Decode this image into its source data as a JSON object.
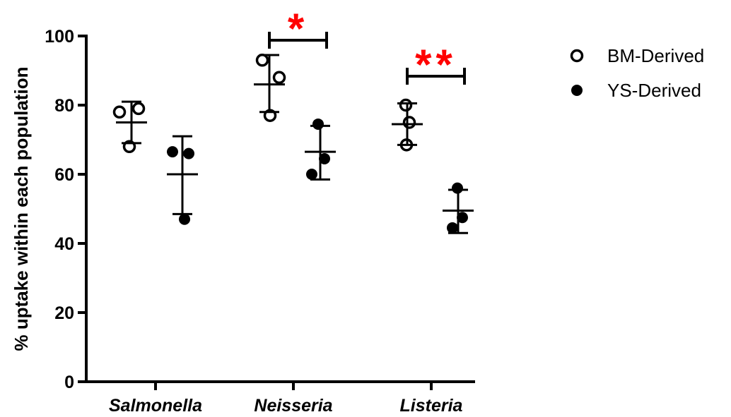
{
  "chart_data": {
    "type": "scatter",
    "title": "",
    "xlabel": "",
    "ylabel": "% uptake within each population",
    "ylim": [
      0,
      100
    ],
    "yticks": [
      0,
      20,
      40,
      60,
      80,
      100
    ],
    "categories": [
      "Salmonella",
      "Neisseria",
      "Listeria"
    ],
    "series": [
      {
        "name": "BM-Derived",
        "marker": "open-circle",
        "points": [
          [
            78,
            79,
            68
          ],
          [
            93,
            88,
            77
          ],
          [
            80,
            75,
            68.5
          ]
        ],
        "mean": [
          75,
          86,
          74.5
        ],
        "error_upper": [
          81,
          94.5,
          80.5
        ],
        "error_lower": [
          69,
          78,
          68.5
        ]
      },
      {
        "name": "YS-Derived",
        "marker": "filled-circle",
        "points": [
          [
            66.5,
            66,
            47
          ],
          [
            74.5,
            64.5,
            60
          ],
          [
            56,
            47.5,
            44.5
          ]
        ],
        "mean": [
          60,
          66.5,
          49.5
        ],
        "error_upper": [
          71,
          74,
          55.5
        ],
        "error_lower": [
          48.5,
          58.5,
          43
        ]
      }
    ],
    "significance": [
      {
        "category": "Neisseria",
        "label": "*"
      },
      {
        "category": "Listeria",
        "label": "**"
      }
    ],
    "legend_position": "top-right",
    "grid": false
  }
}
